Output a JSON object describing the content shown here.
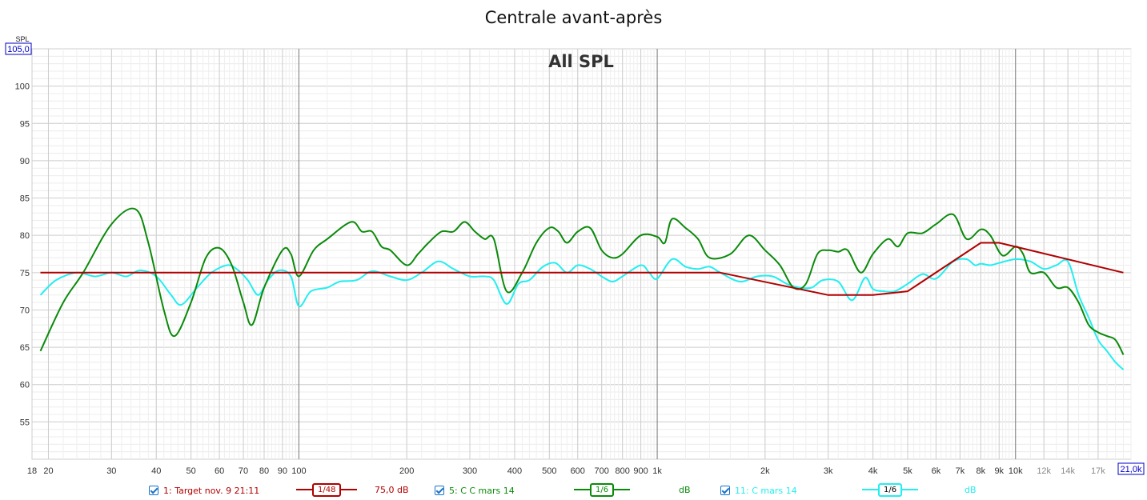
{
  "title": "Centrale avant-après",
  "chart_data": {
    "type": "line",
    "title": "Centrale avant-après",
    "overlay_label": "All SPL",
    "ylabel": "SPL",
    "x_scale": "log",
    "xlim": [
      18,
      21000
    ],
    "ylim": [
      50,
      105
    ],
    "y_top_box": "105,0",
    "x_right_box": "21,0k",
    "y_ticks": [
      55,
      60,
      65,
      70,
      75,
      80,
      85,
      90,
      95,
      100
    ],
    "x_ticks": [
      {
        "v": 18,
        "label": "18"
      },
      {
        "v": 20,
        "label": "20"
      },
      {
        "v": 30,
        "label": "30"
      },
      {
        "v": 40,
        "label": "40"
      },
      {
        "v": 50,
        "label": "50"
      },
      {
        "v": 60,
        "label": "60"
      },
      {
        "v": 70,
        "label": "70"
      },
      {
        "v": 80,
        "label": "80"
      },
      {
        "v": 90,
        "label": "90"
      },
      {
        "v": 100,
        "label": "100"
      },
      {
        "v": 200,
        "label": "200"
      },
      {
        "v": 300,
        "label": "300"
      },
      {
        "v": 400,
        "label": "400"
      },
      {
        "v": 500,
        "label": "500"
      },
      {
        "v": 600,
        "label": "600"
      },
      {
        "v": 700,
        "label": "700"
      },
      {
        "v": 800,
        "label": "800"
      },
      {
        "v": 900,
        "label": "900"
      },
      {
        "v": 1000,
        "label": "1k"
      },
      {
        "v": 2000,
        "label": "2k"
      },
      {
        "v": 3000,
        "label": "3k"
      },
      {
        "v": 4000,
        "label": "4k"
      },
      {
        "v": 5000,
        "label": "5k"
      },
      {
        "v": 6000,
        "label": "6k"
      },
      {
        "v": 7000,
        "label": "7k"
      },
      {
        "v": 8000,
        "label": "8k"
      },
      {
        "v": 9000,
        "label": "9k"
      },
      {
        "v": 10000,
        "label": "10k"
      },
      {
        "v": 12000,
        "label": "12k"
      },
      {
        "v": 14000,
        "label": "14k"
      },
      {
        "v": 17000,
        "label": "17k"
      }
    ],
    "grid": true,
    "legend_position": "bottom",
    "series": [
      {
        "name": "1: Target nov. 9 21:11",
        "color": "#b00000",
        "smoothing": "1/48",
        "offset": "75,0 dB",
        "points": [
          [
            19,
            75
          ],
          [
            1500,
            75
          ],
          [
            3000,
            72
          ],
          [
            4000,
            72
          ],
          [
            5000,
            72.5
          ],
          [
            8000,
            79
          ],
          [
            9000,
            79
          ],
          [
            20000,
            75
          ]
        ]
      },
      {
        "name": "5: C C mars 14",
        "color": "#0a8a0a",
        "smoothing": "1/6",
        "offset": "dB",
        "points": [
          [
            19,
            64.5
          ],
          [
            22,
            71
          ],
          [
            25,
            75
          ],
          [
            30,
            81.5
          ],
          [
            35,
            83.5
          ],
          [
            38,
            79
          ],
          [
            42,
            70
          ],
          [
            45,
            66.5
          ],
          [
            50,
            71
          ],
          [
            55,
            77
          ],
          [
            60,
            78.3
          ],
          [
            65,
            76
          ],
          [
            70,
            71
          ],
          [
            74,
            68
          ],
          [
            80,
            73
          ],
          [
            90,
            78
          ],
          [
            95,
            77.5
          ],
          [
            100,
            74.5
          ],
          [
            110,
            78
          ],
          [
            120,
            79.5
          ],
          [
            140,
            81.8
          ],
          [
            150,
            80.5
          ],
          [
            160,
            80.5
          ],
          [
            170,
            78.5
          ],
          [
            180,
            78
          ],
          [
            200,
            76
          ],
          [
            215,
            77.5
          ],
          [
            230,
            79
          ],
          [
            250,
            80.5
          ],
          [
            270,
            80.5
          ],
          [
            290,
            81.8
          ],
          [
            310,
            80.5
          ],
          [
            330,
            79.5
          ],
          [
            350,
            79.5
          ],
          [
            380,
            72.5
          ],
          [
            420,
            75
          ],
          [
            460,
            79
          ],
          [
            500,
            81
          ],
          [
            530,
            80.5
          ],
          [
            560,
            79
          ],
          [
            600,
            80.5
          ],
          [
            650,
            81
          ],
          [
            700,
            78
          ],
          [
            750,
            77
          ],
          [
            800,
            77.5
          ],
          [
            900,
            80
          ],
          [
            1000,
            79.8
          ],
          [
            1050,
            79
          ],
          [
            1100,
            82.2
          ],
          [
            1200,
            81
          ],
          [
            1300,
            79.5
          ],
          [
            1400,
            77
          ],
          [
            1600,
            77.5
          ],
          [
            1800,
            80
          ],
          [
            2000,
            78
          ],
          [
            2200,
            76
          ],
          [
            2400,
            73
          ],
          [
            2600,
            73.5
          ],
          [
            2800,
            77.5
          ],
          [
            3000,
            78
          ],
          [
            3200,
            77.8
          ],
          [
            3400,
            78
          ],
          [
            3700,
            75
          ],
          [
            4000,
            77.5
          ],
          [
            4400,
            79.5
          ],
          [
            4700,
            78.5
          ],
          [
            5000,
            80.3
          ],
          [
            5500,
            80.3
          ],
          [
            6000,
            81.5
          ],
          [
            6700,
            82.8
          ],
          [
            7300,
            79.5
          ],
          [
            8000,
            80.8
          ],
          [
            8500,
            80
          ],
          [
            9200,
            77.3
          ],
          [
            10000,
            78.5
          ],
          [
            10500,
            77.5
          ],
          [
            11000,
            75
          ],
          [
            12000,
            75
          ],
          [
            13000,
            73
          ],
          [
            14000,
            73
          ],
          [
            15000,
            71
          ],
          [
            16000,
            68
          ],
          [
            17000,
            67
          ],
          [
            18000,
            66.5
          ],
          [
            19000,
            66
          ],
          [
            20000,
            64
          ]
        ]
      },
      {
        "name": "11: C mars 14",
        "color": "#22eef0",
        "smoothing": "1/6",
        "offset": "dB",
        "points": [
          [
            19,
            72
          ],
          [
            21,
            74
          ],
          [
            24,
            75
          ],
          [
            27,
            74.5
          ],
          [
            30,
            75
          ],
          [
            33,
            74.5
          ],
          [
            36,
            75.3
          ],
          [
            40,
            74.5
          ],
          [
            44,
            72
          ],
          [
            47,
            70.7
          ],
          [
            52,
            73
          ],
          [
            57,
            75
          ],
          [
            63,
            76
          ],
          [
            67,
            75.5
          ],
          [
            72,
            74
          ],
          [
            77,
            72
          ],
          [
            82,
            74
          ],
          [
            88,
            75.3
          ],
          [
            95,
            74.5
          ],
          [
            100,
            70.5
          ],
          [
            108,
            72.5
          ],
          [
            120,
            73
          ],
          [
            130,
            73.8
          ],
          [
            145,
            74
          ],
          [
            160,
            75.2
          ],
          [
            180,
            74.5
          ],
          [
            200,
            74
          ],
          [
            220,
            75
          ],
          [
            245,
            76.5
          ],
          [
            270,
            75.5
          ],
          [
            300,
            74.5
          ],
          [
            330,
            74.5
          ],
          [
            350,
            74
          ],
          [
            380,
            70.8
          ],
          [
            410,
            73.5
          ],
          [
            440,
            74
          ],
          [
            480,
            75.8
          ],
          [
            520,
            76.3
          ],
          [
            560,
            75
          ],
          [
            600,
            76
          ],
          [
            650,
            75.5
          ],
          [
            700,
            74.5
          ],
          [
            750,
            73.8
          ],
          [
            800,
            74.5
          ],
          [
            900,
            76
          ],
          [
            950,
            75
          ],
          [
            1000,
            74.2
          ],
          [
            1100,
            76.8
          ],
          [
            1200,
            75.8
          ],
          [
            1300,
            75.5
          ],
          [
            1400,
            75.8
          ],
          [
            1500,
            75
          ],
          [
            1700,
            73.8
          ],
          [
            1900,
            74.5
          ],
          [
            2100,
            74.5
          ],
          [
            2300,
            73.5
          ],
          [
            2500,
            73
          ],
          [
            2700,
            73
          ],
          [
            2900,
            74
          ],
          [
            3200,
            73.8
          ],
          [
            3500,
            71.3
          ],
          [
            3800,
            74.3
          ],
          [
            4000,
            72.8
          ],
          [
            4300,
            72.5
          ],
          [
            4600,
            72.5
          ],
          [
            5000,
            73.5
          ],
          [
            5500,
            74.8
          ],
          [
            6000,
            74.2
          ],
          [
            6700,
            76.5
          ],
          [
            7300,
            76.8
          ],
          [
            7700,
            76
          ],
          [
            8000,
            76.2
          ],
          [
            8500,
            76
          ],
          [
            9000,
            76.3
          ],
          [
            10000,
            76.8
          ],
          [
            11000,
            76.5
          ],
          [
            12000,
            75.5
          ],
          [
            13000,
            76
          ],
          [
            14000,
            76.5
          ],
          [
            15000,
            72
          ],
          [
            16000,
            69
          ],
          [
            17000,
            66
          ],
          [
            18000,
            64.5
          ],
          [
            19000,
            63
          ],
          [
            20000,
            62
          ]
        ]
      }
    ]
  },
  "legend": {
    "items": [
      {
        "label": "1: Target nov. 9 21:11",
        "smoothing": "1/48",
        "value": "75,0 dB",
        "color": "#b00000"
      },
      {
        "label": "5: C C mars 14",
        "smoothing": "1/6",
        "value": "dB",
        "color": "#0a8a0a"
      },
      {
        "label": "11: C mars 14",
        "smoothing": "1/6",
        "value": "dB",
        "color": "#22eef0"
      }
    ]
  }
}
